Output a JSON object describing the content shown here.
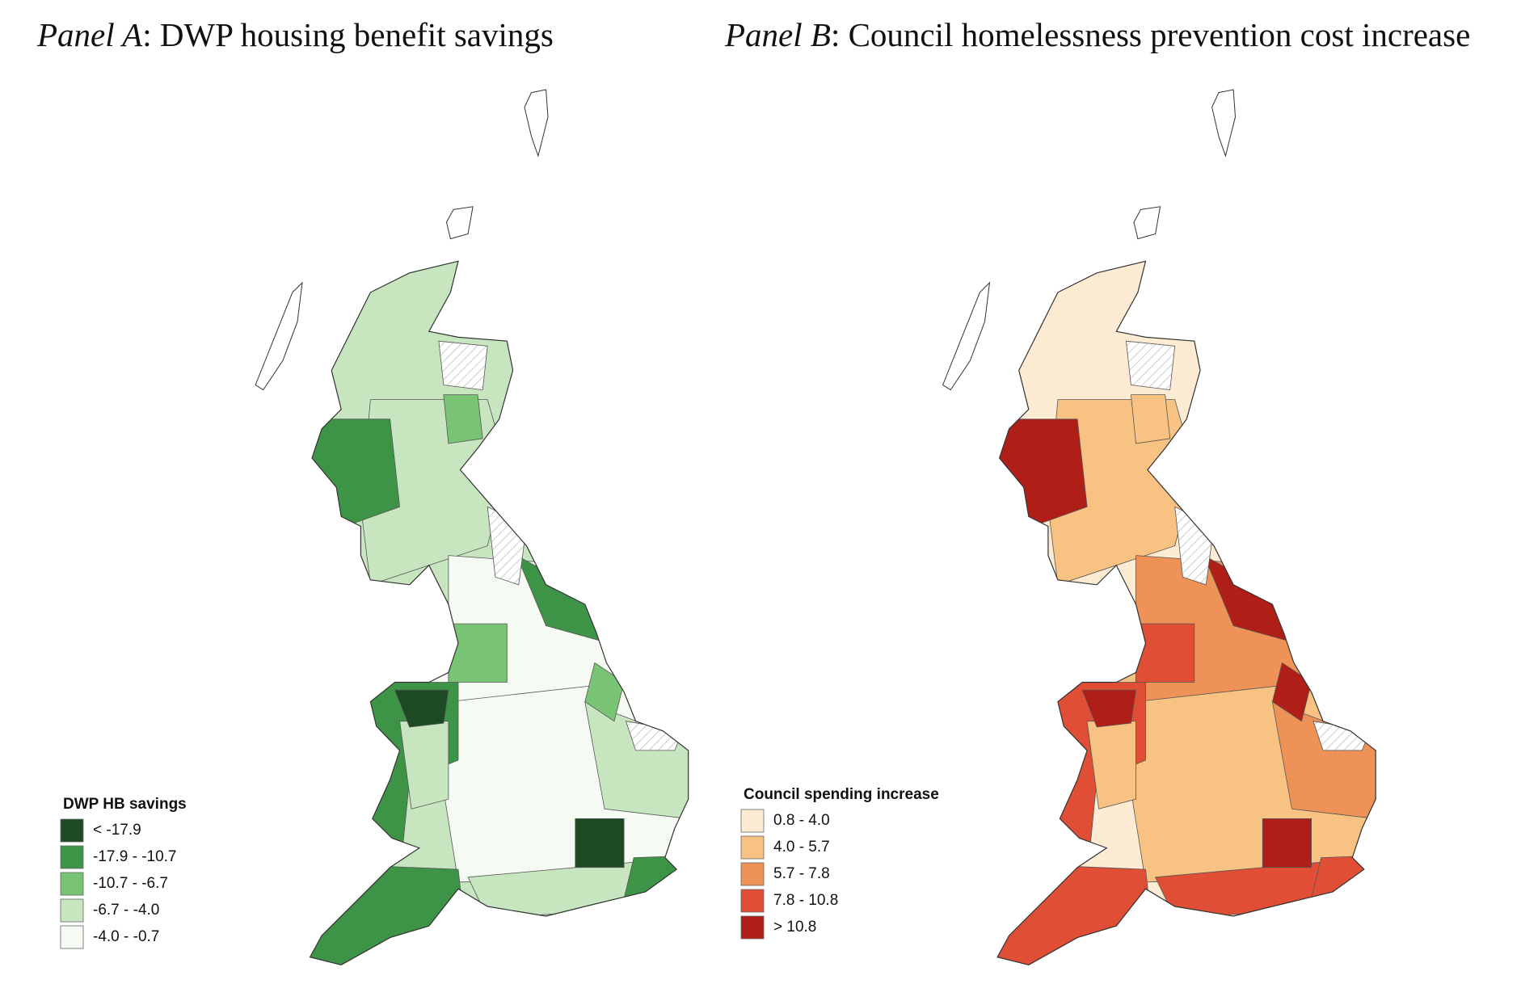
{
  "panels": [
    {
      "label": "Panel A",
      "title": ": DWP housing benefit savings",
      "legend": {
        "title": "DWP HB savings",
        "classes": [
          {
            "label": "< -17.9",
            "color": "#1d4a22"
          },
          {
            "label": "-17.9 - -10.7",
            "color": "#3d9447"
          },
          {
            "label": "-10.7 - -6.7",
            "color": "#79c474"
          },
          {
            "label": "-6.7 - -4.0",
            "color": "#c7e6c0"
          },
          {
            "label": "-4.0 - -0.7",
            "color": "#f5fbf2"
          }
        ]
      }
    },
    {
      "label": "Panel B",
      "title": ": Council homelessness prevention cost increase",
      "legend": {
        "title": "Council spending increase",
        "classes": [
          {
            "label": "0.8 - 4.0",
            "color": "#fdebd3"
          },
          {
            "label": "4.0 - 5.7",
            "color": "#f8c282"
          },
          {
            "label": "5.7 - 7.8",
            "color": "#ef9258"
          },
          {
            "label": "7.8 - 10.8",
            "color": "#e04e35"
          },
          {
            "label": "> 10.8",
            "color": "#b01f17"
          }
        ]
      }
    }
  ]
}
